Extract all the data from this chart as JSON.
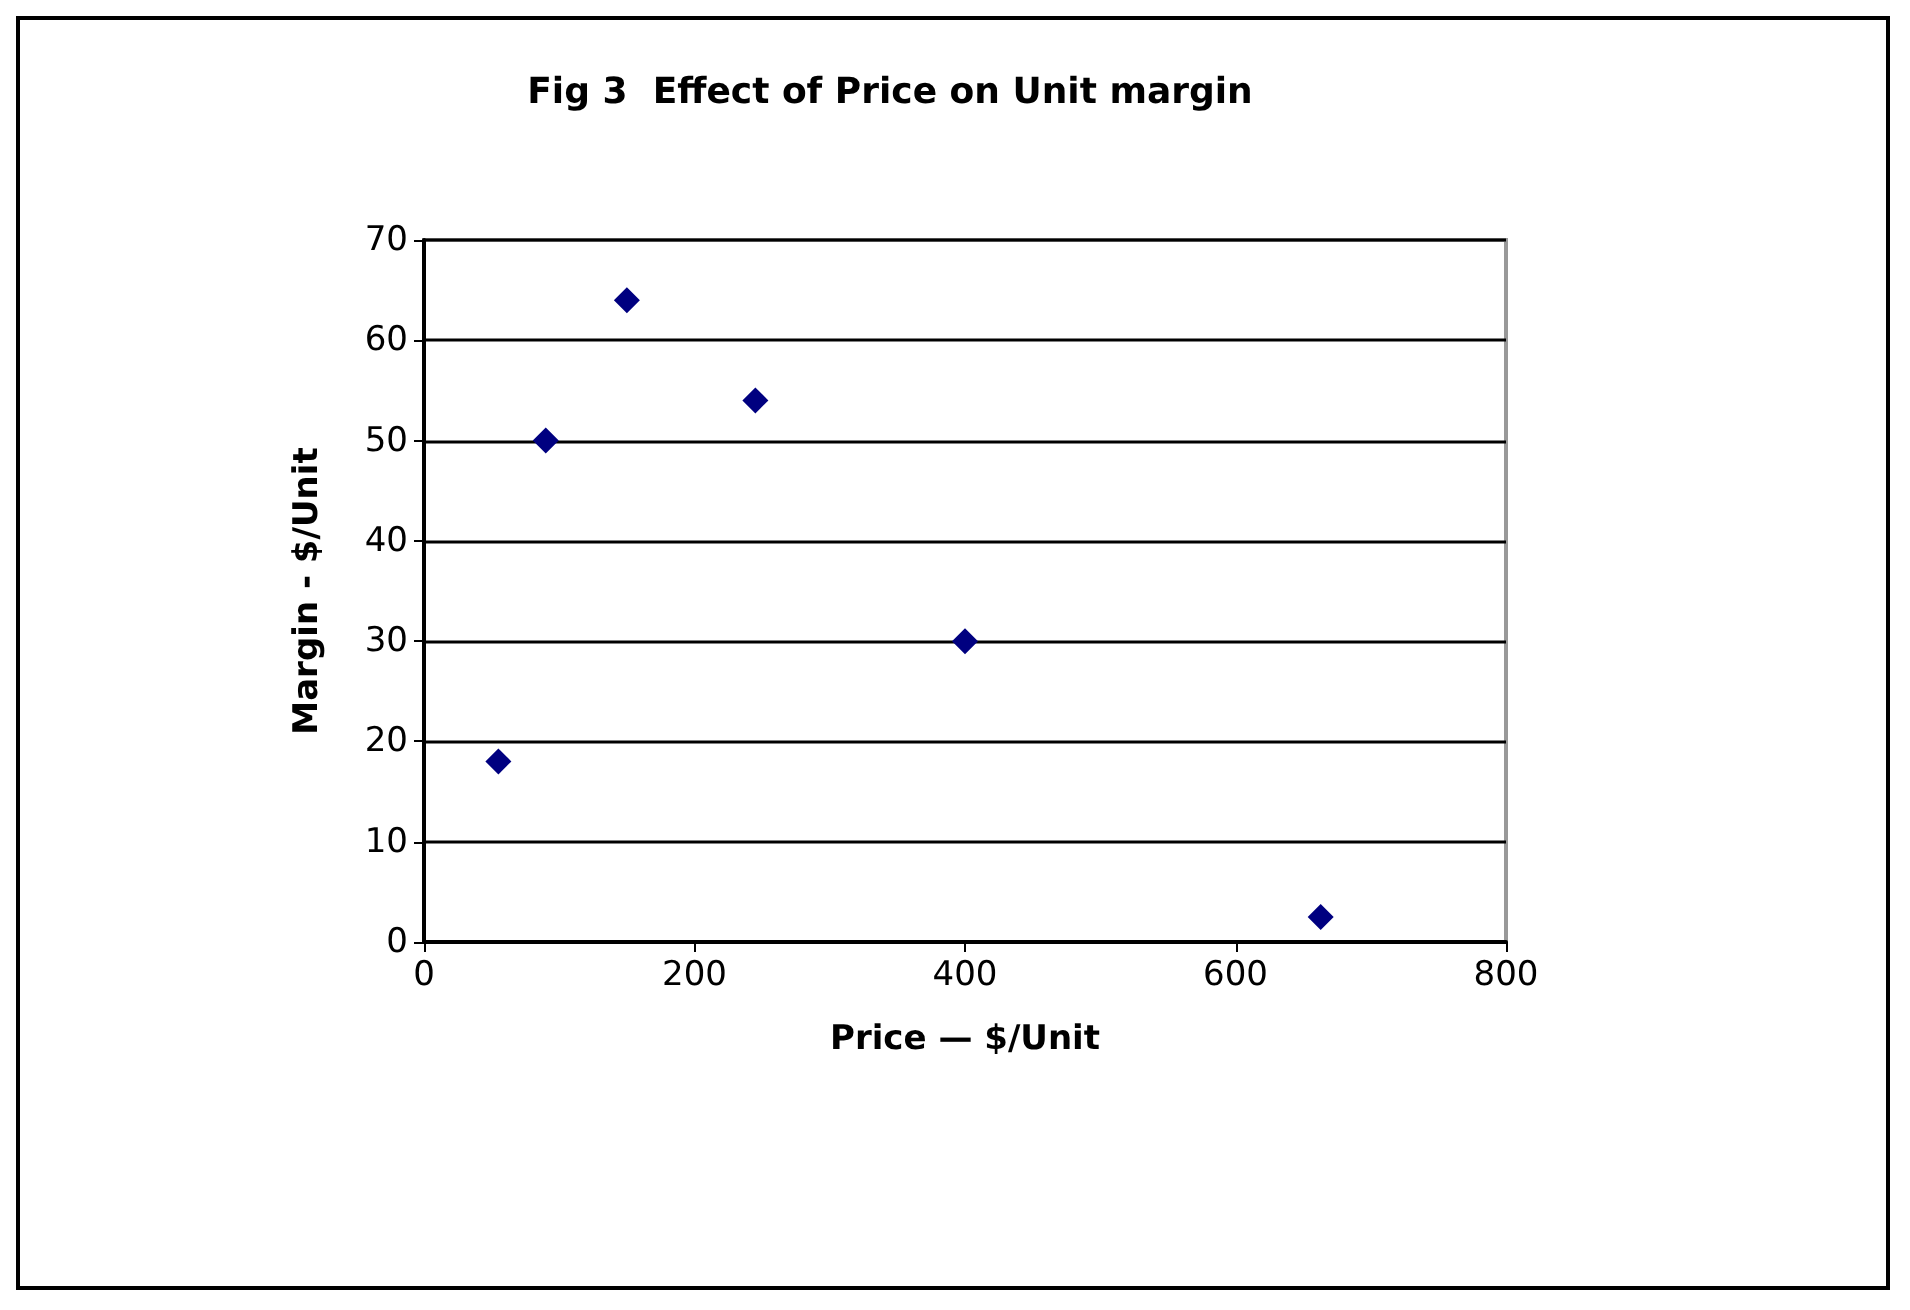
{
  "chart_data": {
    "type": "scatter",
    "title": "Fig 3  Effect of Price on Unit margin",
    "xlabel": "Price — $/Unit",
    "ylabel": "Margin - $/Unit",
    "x": [
      55,
      90,
      150,
      245,
      400,
      663
    ],
    "series": [
      {
        "color": "#000080",
        "values": [
          18,
          50,
          64,
          54,
          30,
          2.5
        ]
      }
    ],
    "xlim": [
      0,
      800
    ],
    "xticks": [
      0,
      200,
      400,
      600,
      800
    ],
    "ylim": [
      0,
      70
    ],
    "yticks": [
      0,
      10,
      20,
      30,
      40,
      50,
      60,
      70
    ],
    "grid": "y",
    "marker": "diamond"
  }
}
